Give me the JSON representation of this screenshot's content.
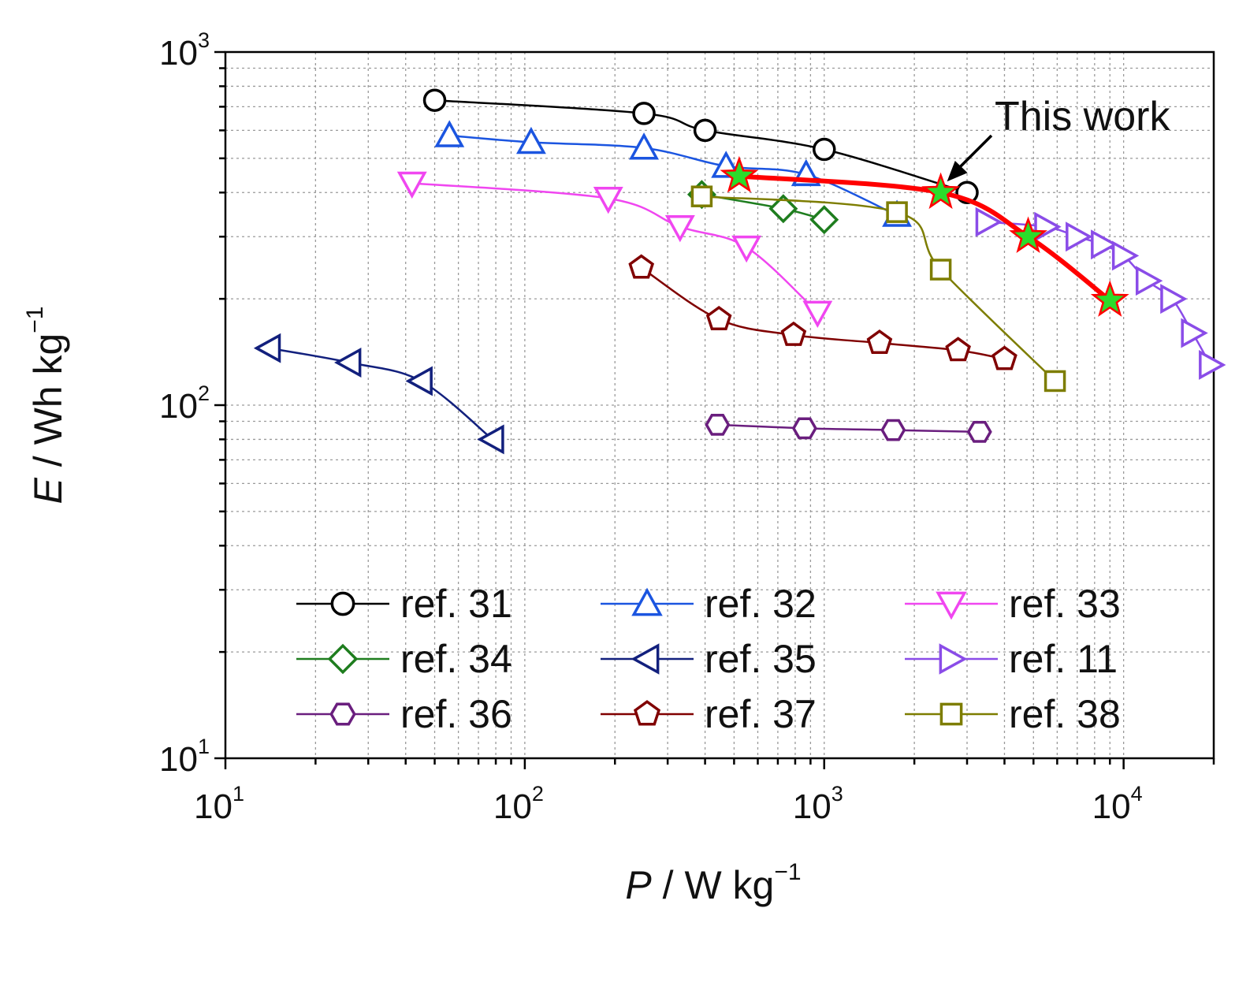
{
  "chart_data": {
    "type": "scatter",
    "subtype": "ragone-plot",
    "xscale": "log",
    "yscale": "log",
    "xlim": [
      10,
      20000
    ],
    "ylim": [
      10,
      1000
    ],
    "grid": true,
    "legend_position": "bottom-center",
    "legend_columns": 3,
    "xlabel": {
      "italic": "P",
      "text": " / W kg",
      "sup": "−1"
    },
    "ylabel": {
      "italic": "E",
      "text": " / Wh kg",
      "sup": "−1"
    },
    "x_ticks": [
      {
        "value": 10,
        "base": "10",
        "exp": "1"
      },
      {
        "value": 100,
        "base": "10",
        "exp": "2"
      },
      {
        "value": 1000,
        "base": "10",
        "exp": "3"
      },
      {
        "value": 10000,
        "base": "10",
        "exp": "4"
      }
    ],
    "y_ticks": [
      {
        "value": 10,
        "base": "10",
        "exp": "1"
      },
      {
        "value": 100,
        "base": "10",
        "exp": "2"
      },
      {
        "value": 1000,
        "base": "10",
        "exp": "3"
      }
    ],
    "annotation": {
      "text": "This work",
      "target": [
        2450,
        400
      ]
    },
    "series": [
      {
        "name": "ref. 31",
        "color": "#000000",
        "marker": "circle",
        "x": [
          50,
          250,
          400,
          1000,
          3000
        ],
        "y": [
          730,
          670,
          600,
          530,
          400
        ]
      },
      {
        "name": "ref. 32",
        "color": "#1b55e0",
        "marker": "triangle-up",
        "x": [
          56,
          105,
          250,
          470,
          870,
          1750
        ],
        "y": [
          580,
          555,
          535,
          475,
          450,
          345
        ]
      },
      {
        "name": "ref. 33",
        "color": "#f046f0",
        "marker": "triangle-down",
        "x": [
          42,
          190,
          330,
          550,
          950
        ],
        "y": [
          425,
          385,
          320,
          280,
          183
        ]
      },
      {
        "name": "ref. 34",
        "color": "#1e7d1e",
        "marker": "diamond",
        "x": [
          390,
          730,
          1000
        ],
        "y": [
          395,
          360,
          335
        ]
      },
      {
        "name": "ref. 35",
        "color": "#12207d",
        "marker": "triangle-left",
        "x": [
          14,
          26,
          45,
          78
        ],
        "y": [
          145,
          132,
          117,
          80
        ]
      },
      {
        "name": "ref. 11",
        "color": "#8a4ce8",
        "marker": "triangle-right",
        "x": [
          3500,
          5500,
          7000,
          8500,
          10000,
          12000,
          14500,
          17000,
          19500
        ],
        "y": [
          330,
          320,
          300,
          285,
          265,
          225,
          200,
          160,
          130
        ]
      },
      {
        "name": "ref. 36",
        "color": "#6a1e7e",
        "marker": "hexagon",
        "x": [
          440,
          860,
          1700,
          3300
        ],
        "y": [
          88,
          86,
          85,
          84
        ]
      },
      {
        "name": "ref. 37",
        "color": "#800000",
        "marker": "pentagon",
        "x": [
          245,
          445,
          790,
          1530,
          2800,
          4000
        ],
        "y": [
          245,
          175,
          158,
          150,
          143,
          135
        ]
      },
      {
        "name": "ref. 38",
        "color": "#7d7d00",
        "marker": "square",
        "x": [
          390,
          1750,
          2450,
          5900
        ],
        "y": [
          390,
          352,
          242,
          117
        ]
      },
      {
        "name": "This work",
        "color": "#ff0000",
        "marker": "star",
        "marker_fill": "#2bdc2b",
        "line_width": "thick",
        "x": [
          520,
          2450,
          4800,
          9000
        ],
        "y": [
          445,
          400,
          300,
          198
        ]
      }
    ]
  }
}
